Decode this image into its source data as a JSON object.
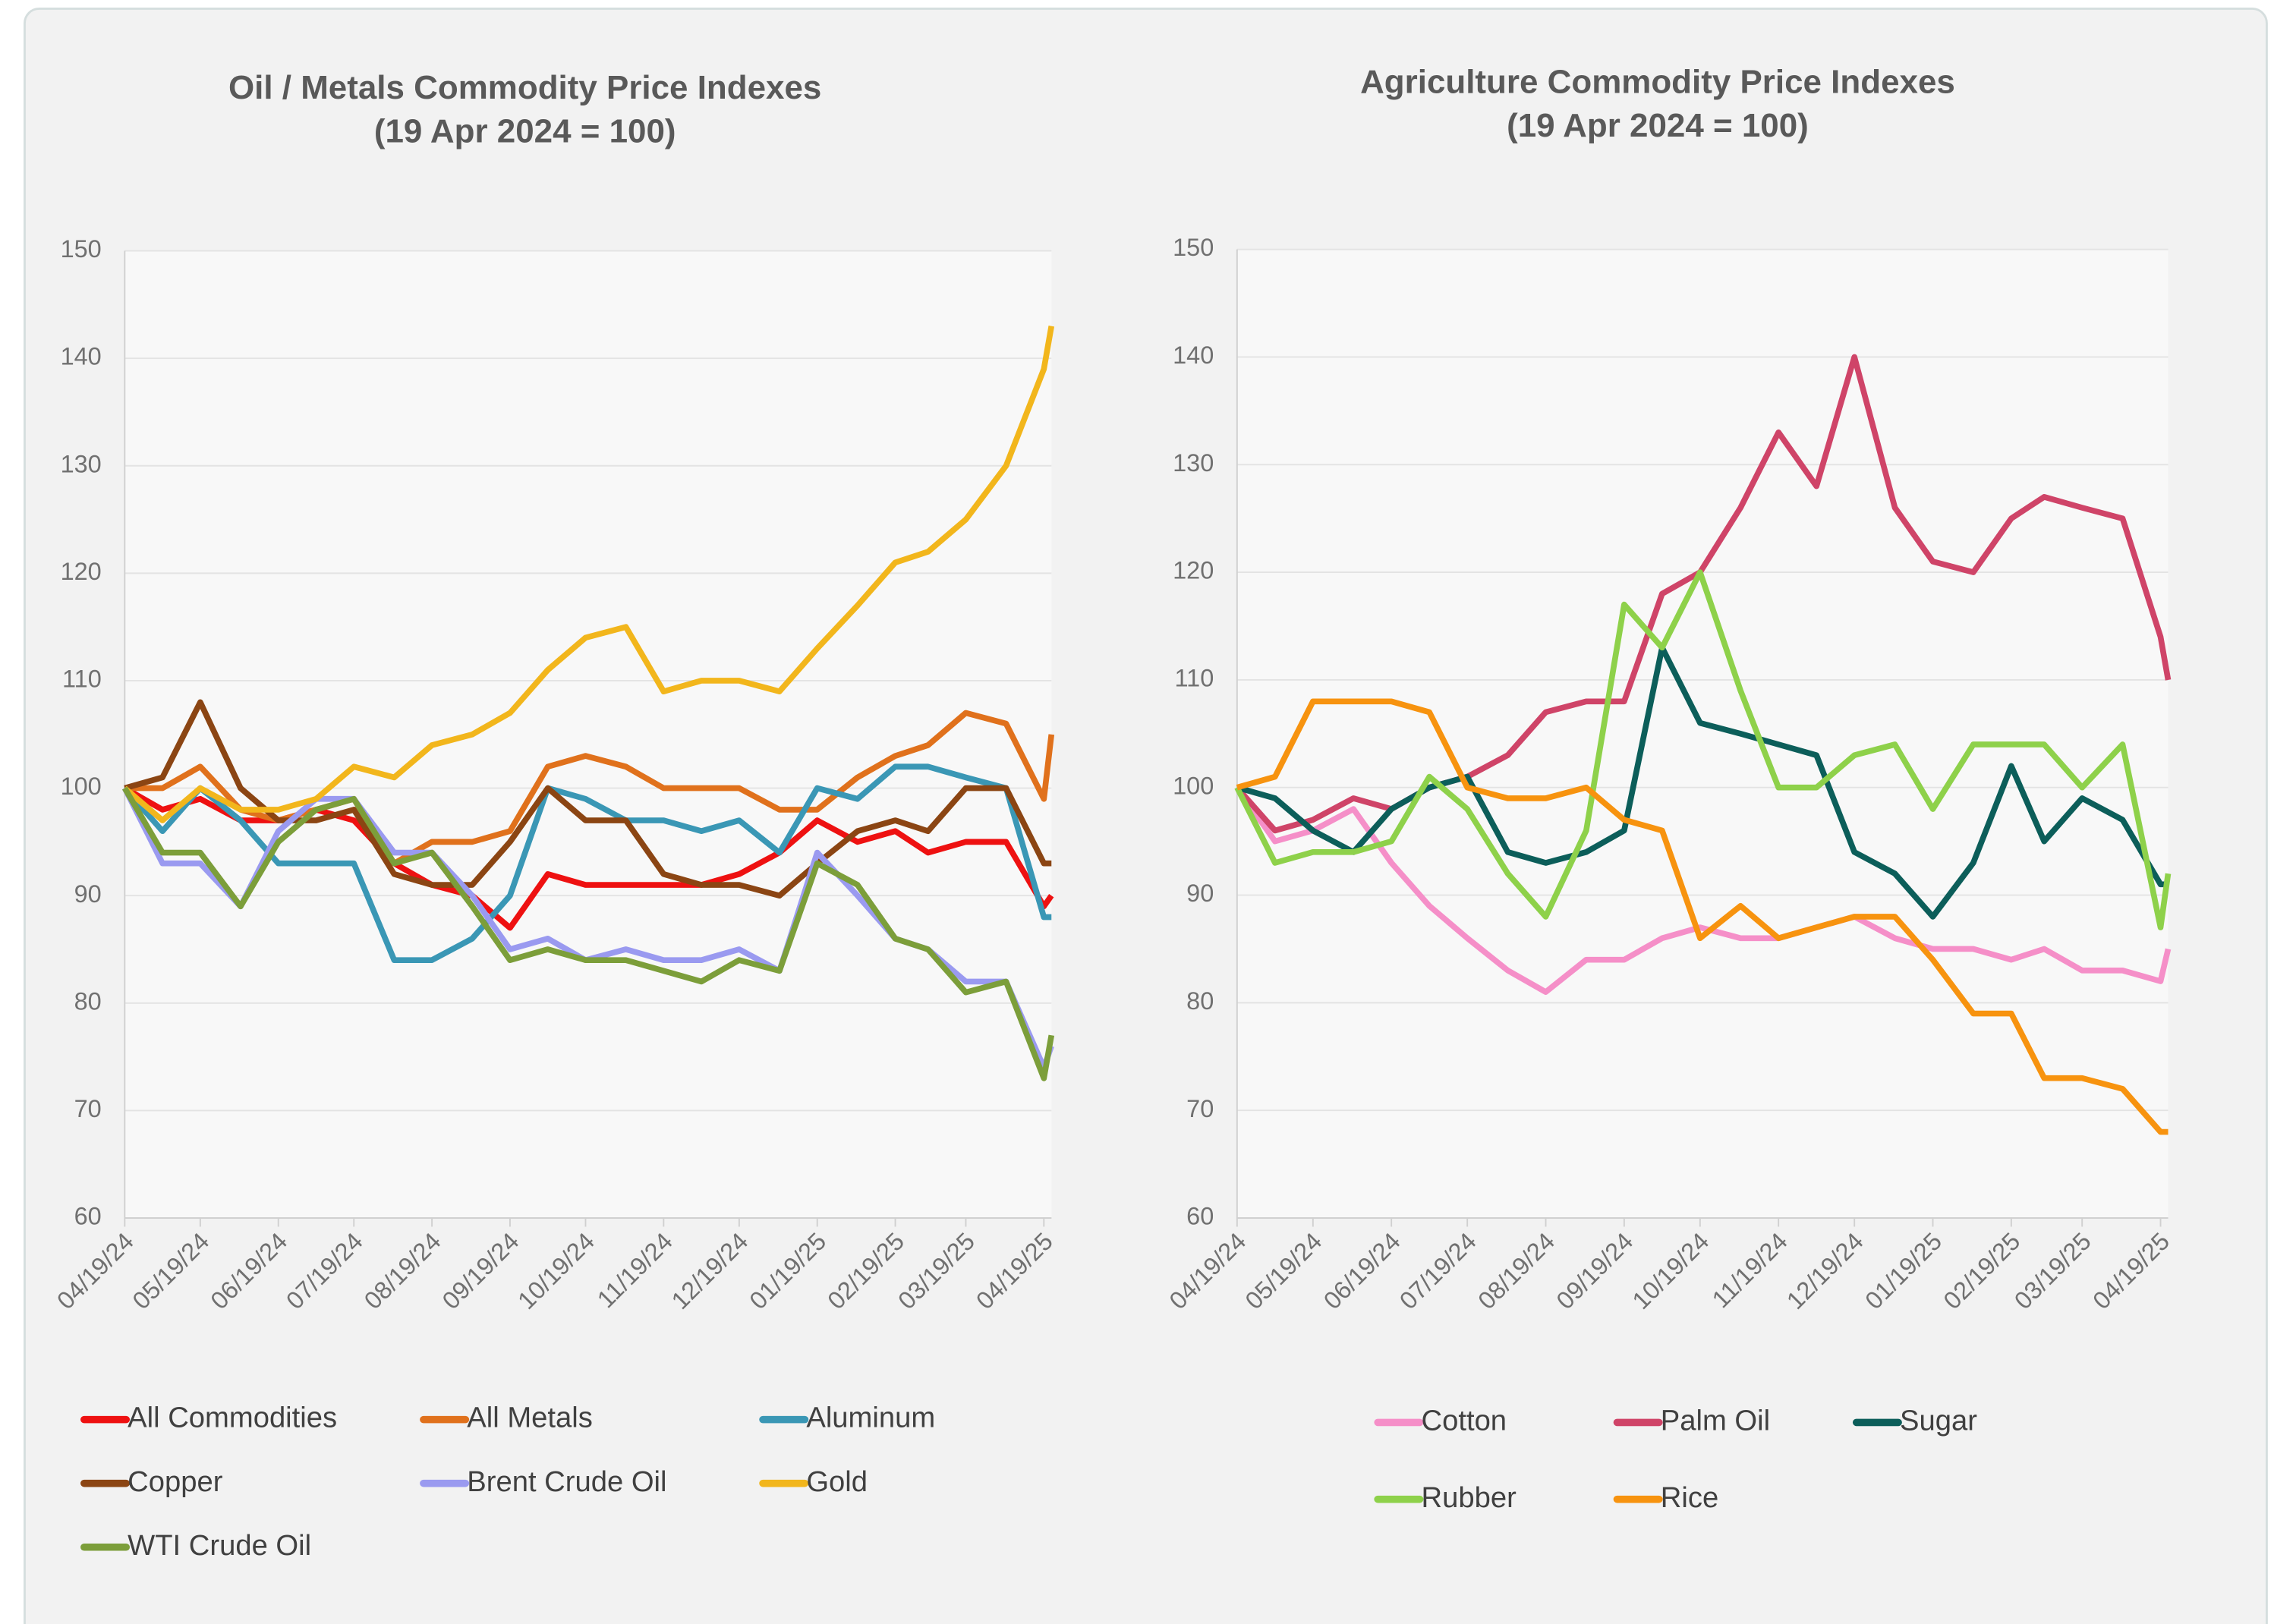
{
  "chart_data": [
    {
      "type": "line",
      "title": "Oil / Metals Commodity Price Indexes",
      "subtitle": "(19 Apr 2024 = 100)",
      "x": [
        "04/19/24",
        "05/04/24",
        "05/19/24",
        "06/04/24",
        "06/19/24",
        "07/04/24",
        "07/19/24",
        "08/04/24",
        "08/19/24",
        "09/04/24",
        "09/19/24",
        "10/04/24",
        "10/19/24",
        "11/04/24",
        "11/19/24",
        "12/04/24",
        "12/19/24",
        "01/04/25",
        "01/19/25",
        "02/04/25",
        "02/19/25",
        "03/04/25",
        "03/19/25",
        "04/04/25",
        "04/19/25",
        "04/22/25"
      ],
      "xlim": [
        "04/19/24",
        "04/22/25"
      ],
      "xticks": [
        "04/19/24",
        "05/19/24",
        "06/19/24",
        "07/19/24",
        "08/19/24",
        "09/19/24",
        "10/19/24",
        "11/19/24",
        "12/19/24",
        "01/19/25",
        "02/19/25",
        "03/19/25",
        "04/19/25"
      ],
      "ylim": [
        60,
        150
      ],
      "yticks": [
        60,
        70,
        80,
        90,
        100,
        110,
        120,
        130,
        140,
        150
      ],
      "grid": true,
      "series": [
        {
          "name": "All Commodities",
          "color": "#ee1111",
          "values": [
            100,
            98,
            99,
            97,
            97,
            98,
            97,
            93,
            91,
            90,
            87,
            92,
            91,
            91,
            91,
            91,
            92,
            94,
            97,
            95,
            96,
            94,
            95,
            95,
            89,
            90
          ]
        },
        {
          "name": "All Metals",
          "color": "#e0711c",
          "values": [
            100,
            100,
            102,
            98,
            97,
            98,
            99,
            93,
            95,
            95,
            96,
            102,
            103,
            102,
            100,
            100,
            100,
            98,
            98,
            101,
            103,
            104,
            107,
            106,
            99,
            105
          ]
        },
        {
          "name": "Aluminum",
          "color": "#3a97b5",
          "values": [
            100,
            96,
            100,
            97,
            93,
            93,
            93,
            84,
            84,
            86,
            90,
            100,
            99,
            97,
            97,
            96,
            97,
            94,
            100,
            99,
            102,
            102,
            101,
            100,
            88,
            88
          ]
        },
        {
          "name": "Copper",
          "color": "#8b4513",
          "values": [
            100,
            101,
            108,
            100,
            97,
            97,
            98,
            92,
            91,
            91,
            95,
            100,
            97,
            97,
            92,
            91,
            91,
            90,
            93,
            96,
            97,
            96,
            100,
            100,
            93,
            93
          ]
        },
        {
          "name": "Brent Crude Oil",
          "color": "#9a9af0",
          "values": [
            100,
            93,
            93,
            89,
            96,
            99,
            99,
            94,
            94,
            90,
            85,
            86,
            84,
            85,
            84,
            84,
            85,
            83,
            94,
            90,
            86,
            85,
            82,
            82,
            74,
            76
          ]
        },
        {
          "name": "Gold",
          "color": "#f2b61c",
          "values": [
            100,
            97,
            100,
            98,
            98,
            99,
            102,
            101,
            104,
            105,
            107,
            111,
            114,
            115,
            109,
            110,
            110,
            109,
            113,
            117,
            121,
            122,
            125,
            130,
            139,
            143
          ]
        },
        {
          "name": "WTI Crude Oil",
          "color": "#7c9e3a",
          "values": [
            100,
            94,
            94,
            89,
            95,
            98,
            99,
            93,
            94,
            89,
            84,
            85,
            84,
            84,
            83,
            82,
            84,
            83,
            93,
            91,
            86,
            85,
            81,
            82,
            73,
            77
          ]
        }
      ]
    },
    {
      "type": "line",
      "title": "Agriculture Commodity Price Indexes",
      "subtitle": "(19 Apr 2024 = 100)",
      "x": [
        "04/19/24",
        "05/04/24",
        "05/19/24",
        "06/04/24",
        "06/19/24",
        "07/04/24",
        "07/19/24",
        "08/04/24",
        "08/19/24",
        "09/04/24",
        "09/19/24",
        "10/04/24",
        "10/19/24",
        "11/04/24",
        "11/19/24",
        "12/04/24",
        "12/19/24",
        "01/04/25",
        "01/19/25",
        "02/04/25",
        "02/19/25",
        "03/04/25",
        "03/19/25",
        "04/04/25",
        "04/19/25",
        "04/22/25"
      ],
      "xlim": [
        "04/19/24",
        "04/22/25"
      ],
      "xticks": [
        "04/19/24",
        "05/19/24",
        "06/19/24",
        "07/19/24",
        "08/19/24",
        "09/19/24",
        "10/19/24",
        "11/19/24",
        "12/19/24",
        "01/19/25",
        "02/19/25",
        "03/19/25",
        "04/19/25"
      ],
      "ylim": [
        60,
        150
      ],
      "yticks": [
        60,
        70,
        80,
        90,
        100,
        110,
        120,
        130,
        140,
        150
      ],
      "grid": true,
      "series": [
        {
          "name": "Cotton",
          "color": "#f58fc8",
          "values": [
            100,
            95,
            96,
            98,
            93,
            89,
            86,
            83,
            81,
            84,
            84,
            86,
            87,
            86,
            86,
            87,
            88,
            86,
            85,
            85,
            84,
            85,
            83,
            83,
            82,
            85
          ]
        },
        {
          "name": "Palm Oil",
          "color": "#cf4468",
          "values": [
            100,
            96,
            97,
            99,
            98,
            100,
            101,
            103,
            107,
            108,
            108,
            118,
            120,
            126,
            133,
            128,
            140,
            126,
            121,
            120,
            125,
            127,
            126,
            125,
            114,
            110
          ]
        },
        {
          "name": "Sugar",
          "color": "#0c5e5a",
          "values": [
            100,
            99,
            96,
            94,
            98,
            100,
            101,
            94,
            93,
            94,
            96,
            113,
            106,
            105,
            104,
            103,
            94,
            92,
            88,
            93,
            102,
            95,
            99,
            97,
            91,
            91
          ]
        },
        {
          "name": "Rubber",
          "color": "#8ed14a",
          "values": [
            100,
            93,
            94,
            94,
            95,
            101,
            98,
            92,
            88,
            96,
            117,
            113,
            120,
            109,
            100,
            100,
            103,
            104,
            98,
            104,
            104,
            104,
            100,
            104,
            87,
            92
          ]
        },
        {
          "name": "Rice",
          "color": "#f7930f",
          "values": [
            100,
            101,
            108,
            108,
            108,
            107,
            100,
            99,
            99,
            100,
            97,
            96,
            86,
            89,
            86,
            87,
            88,
            88,
            84,
            79,
            79,
            73,
            73,
            72,
            68,
            68
          ]
        }
      ]
    }
  ]
}
